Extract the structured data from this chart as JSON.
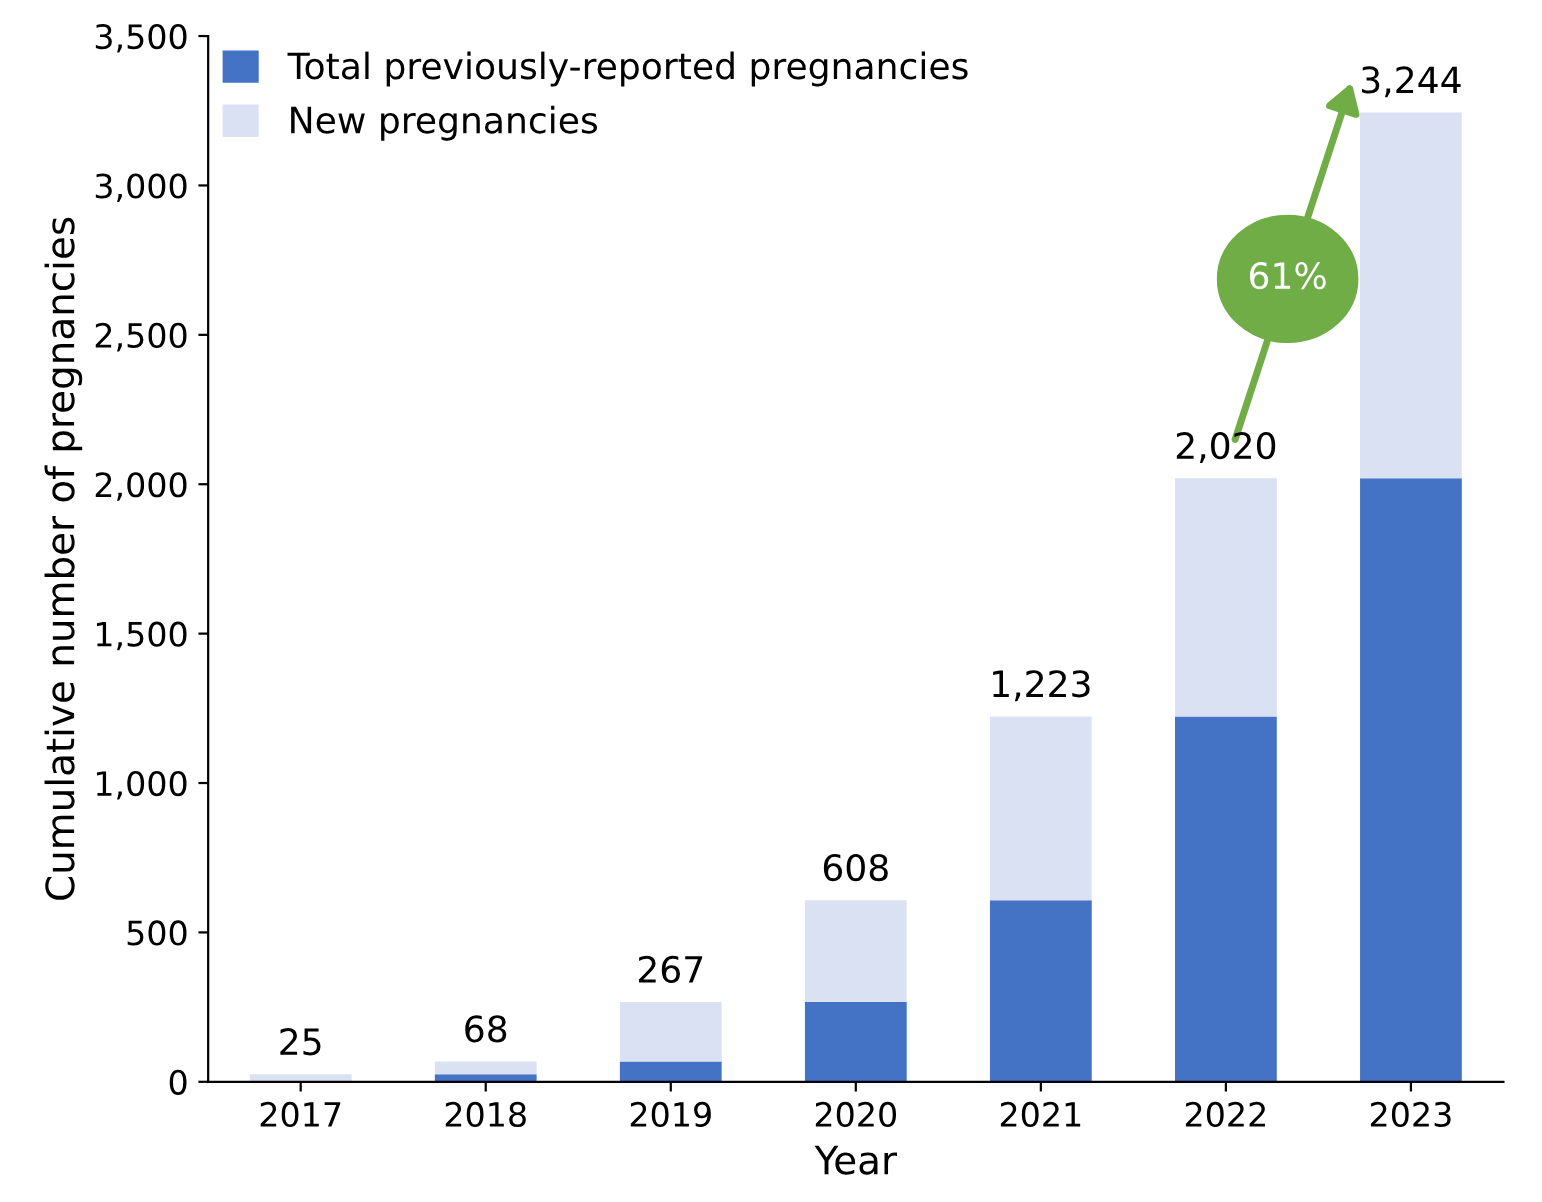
{
  "chart_data": {
    "type": "bar",
    "stacked": true,
    "xlabel": "Year",
    "ylabel": "Cumulative number of pregnancies",
    "categories": [
      "2017",
      "2018",
      "2019",
      "2020",
      "2021",
      "2022",
      "2023"
    ],
    "series": [
      {
        "name": "Total previously-reported pregnancies",
        "color": "#4472c4",
        "values": [
          0,
          25,
          68,
          267,
          608,
          1223,
          2020
        ]
      },
      {
        "name": "New pregnancies",
        "color": "#d9e1f2",
        "values": [
          25,
          43,
          199,
          341,
          615,
          797,
          1224
        ]
      }
    ],
    "totals": [
      "25",
      "68",
      "267",
      "608",
      "1,223",
      "2,020",
      "3,244"
    ],
    "annotations": [
      "61%"
    ],
    "ylim": [
      0,
      3500
    ],
    "yticks": [
      0,
      {
        "value": 500,
        "label": "500"
      },
      {
        "value": 1000,
        "label": "1,000"
      },
      {
        "value": 1500,
        "label": "1,500"
      },
      {
        "value": 2000,
        "label": "2,000"
      },
      {
        "value": 2500,
        "label": "2,500"
      },
      {
        "value": 3000,
        "label": "3,000"
      },
      {
        "value": 3500,
        "label": "3,500"
      }
    ],
    "grid": false,
    "legend": "top left"
  }
}
